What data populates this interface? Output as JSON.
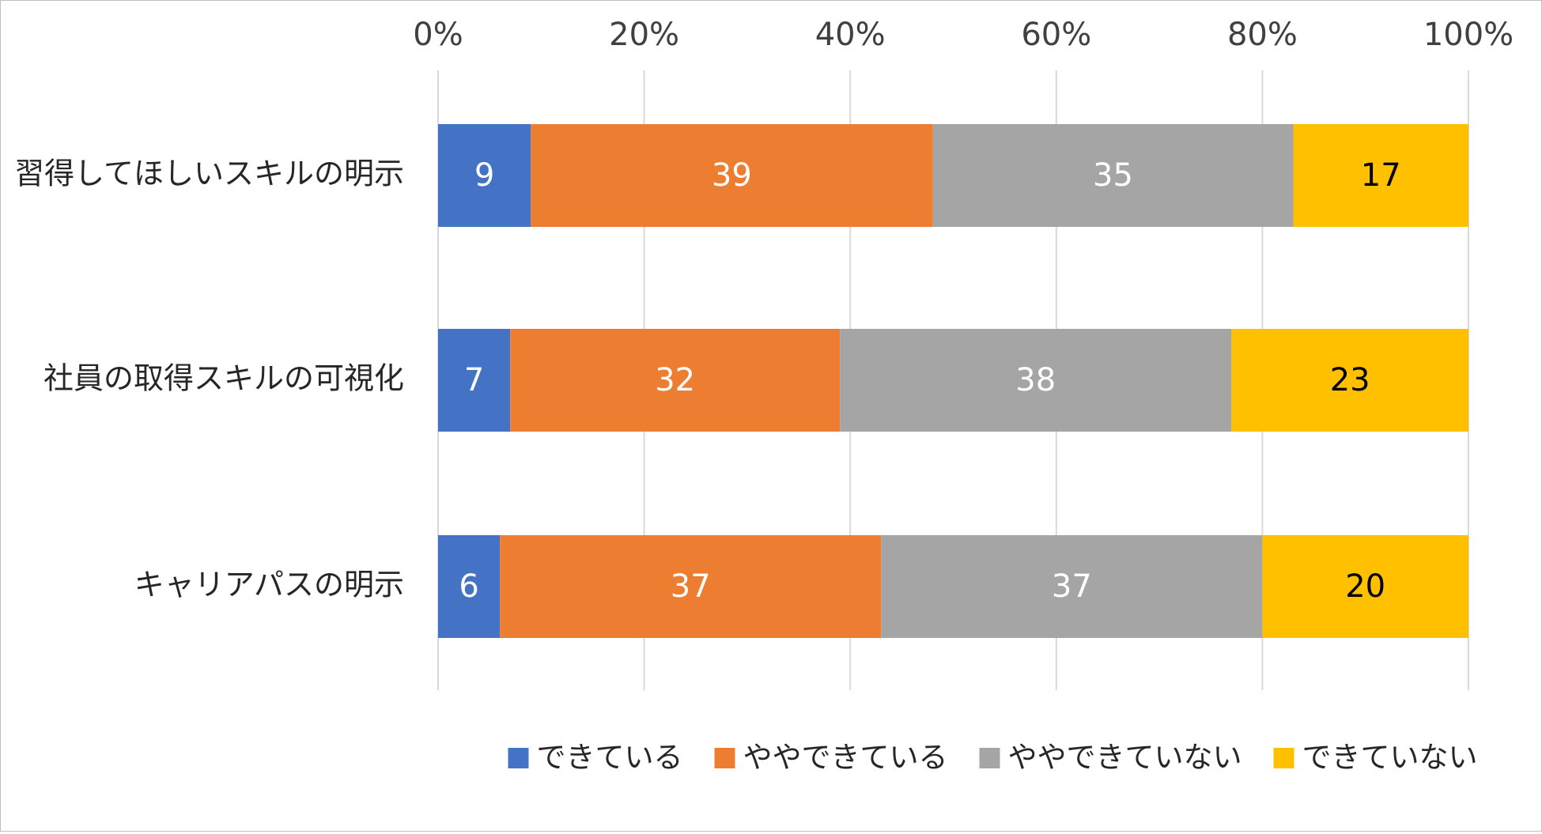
{
  "chart_data": {
    "type": "bar",
    "orientation": "horizontal",
    "stacked": "percent",
    "title": "",
    "xlabel": "",
    "ylabel": "",
    "xlim": [
      0,
      100
    ],
    "x_ticks": [
      "0%",
      "20%",
      "40%",
      "60%",
      "80%",
      "100%"
    ],
    "x_axis_position": "top",
    "grid": true,
    "legend_position": "bottom",
    "categories": [
      "習得してほしいスキルの明示",
      "社員の取得スキルの可視化",
      "キャリアパスの明示"
    ],
    "series": [
      {
        "name": "できている",
        "color": "#4472C4",
        "label_color": "#FFFFFF",
        "values": [
          9,
          7,
          6
        ]
      },
      {
        "name": "ややできている",
        "color": "#ED7D31",
        "label_color": "#FFFFFF",
        "values": [
          39,
          32,
          37
        ]
      },
      {
        "name": "ややできていない",
        "color": "#A5A5A5",
        "label_color": "#FFFFFF",
        "values": [
          35,
          38,
          37
        ]
      },
      {
        "name": "できていない",
        "color": "#FFC000",
        "label_color": "#000000",
        "values": [
          17,
          23,
          20
        ]
      }
    ]
  }
}
